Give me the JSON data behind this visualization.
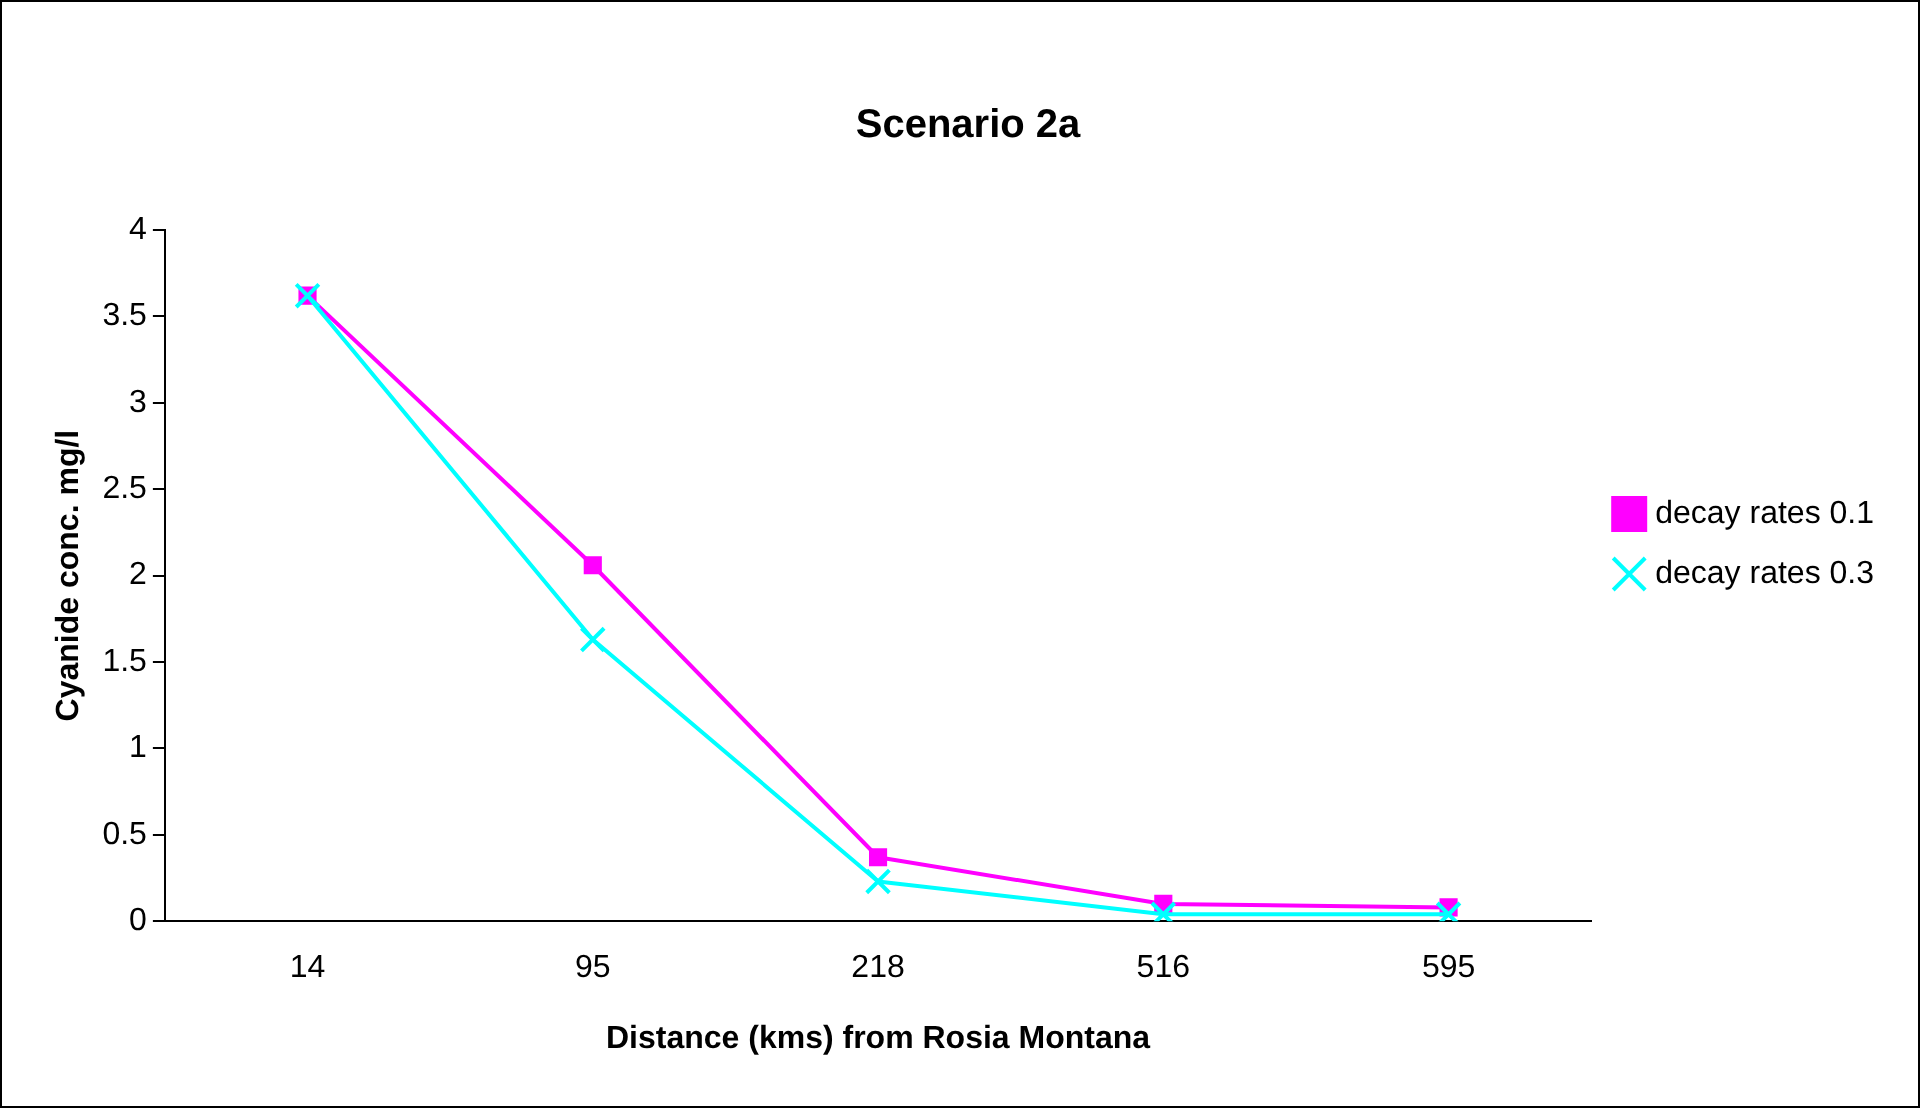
{
  "chart_data": {
    "type": "line",
    "title": "Scenario 2a",
    "xlabel": "Distance (kms) from Rosia Montana",
    "ylabel": "Cyanide conc. mg/l",
    "categories": [
      "14",
      "95",
      "218",
      "516",
      "595"
    ],
    "series": [
      {
        "name": "decay rates 0.1",
        "color": "#ff00ff",
        "marker": "square",
        "values": [
          3.62,
          2.06,
          0.37,
          0.1,
          0.08
        ]
      },
      {
        "name": "decay rates 0.3",
        "color": "#00ffff",
        "marker": "cross",
        "values": [
          3.62,
          1.63,
          0.23,
          0.04,
          0.04
        ]
      }
    ],
    "ylim": [
      0,
      4
    ],
    "yticks": [
      0,
      0.5,
      1,
      1.5,
      2,
      2.5,
      3,
      3.5,
      4
    ],
    "grid": false,
    "legend": "right"
  }
}
